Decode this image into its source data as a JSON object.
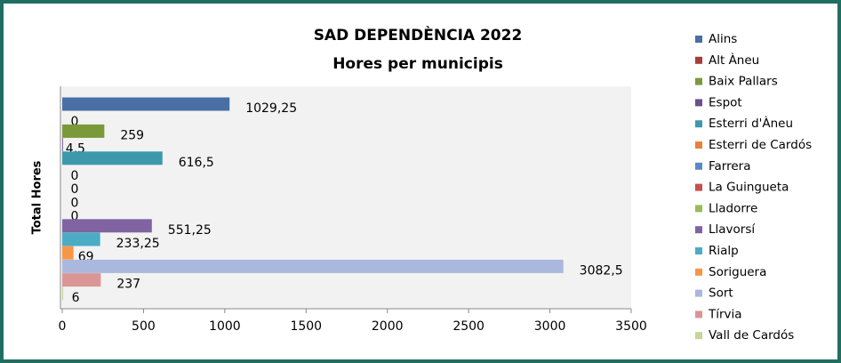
{
  "chart_data": {
    "type": "bar",
    "orientation": "horizontal",
    "title": "SAD DEPENDÈNCIA 2022",
    "subtitle": "Hores per municipis",
    "y_label": "Total Hores",
    "categories": [
      "Alins",
      "Alt Àneu",
      "Baix Pallars",
      "Espot",
      "Esterri d'Àneu",
      "Esterri de Cardós",
      "Farrera",
      "La Guingueta",
      "Lladorre",
      "Llavorsí",
      "Rialp",
      "Soriguera",
      "Sort",
      "Tírvia",
      "Vall de Cardós"
    ],
    "values": [
      1029.25,
      0,
      259,
      4.5,
      616.5,
      0,
      0,
      0,
      0,
      551.25,
      233.25,
      69,
      3082.5,
      237,
      6
    ],
    "value_labels": [
      "1029,25",
      "0",
      "259",
      "4,5",
      "616,5",
      "0",
      "0",
      "0",
      "0",
      "551,25",
      "233,25",
      "69",
      "3082,5",
      "237",
      "6"
    ],
    "colors": [
      "#4a6fa5",
      "#a63d3a",
      "#7a9a3a",
      "#6c4e91",
      "#3d98ac",
      "#e8833a",
      "#5b88c4",
      "#c6504d",
      "#9bbb59",
      "#8064a2",
      "#4bacc6",
      "#f79646",
      "#a9b8dc",
      "#d99694",
      "#c3d69b"
    ],
    "xlim": [
      0,
      3500
    ],
    "xticks": [
      0,
      500,
      1000,
      1500,
      2000,
      2500,
      3000,
      3500
    ],
    "legend": "right"
  }
}
